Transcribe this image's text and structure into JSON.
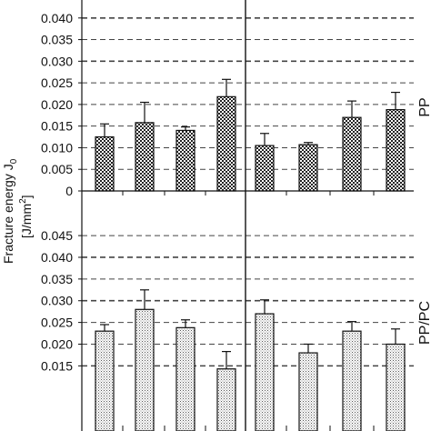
{
  "chart_data": [
    {
      "type": "bar",
      "panel": "top",
      "ylim": [
        0,
        0.045
      ],
      "ytick_values": [
        0,
        0.005,
        0.01,
        0.015,
        0.02,
        0.025,
        0.03,
        0.035,
        0.04
      ],
      "ytick_labels": [
        "0",
        "0.005",
        "0.010",
        "0.015",
        "0.020",
        "0.025",
        "0.030",
        "0.035",
        "0.040"
      ],
      "series": [
        {
          "values": [
            0.0125,
            0.0158,
            0.014,
            0.0218,
            0.0105,
            0.0107,
            0.017,
            0.0188
          ],
          "errors": [
            0.003,
            0.0047,
            0.0008,
            0.004,
            0.0028,
            0.0005,
            0.0038,
            0.004
          ]
        }
      ],
      "side_label": "PP",
      "bar_pattern": "crosshatch"
    },
    {
      "type": "bar",
      "panel": "bottom",
      "ylim": [
        0,
        0.049
      ],
      "ytick_values": [
        0.015,
        0.02,
        0.025,
        0.03,
        0.035,
        0.04,
        0.045
      ],
      "ytick_labels": [
        "0.015",
        "0.020",
        "0.025",
        "0.030",
        "0.035",
        "0.040",
        "0.045"
      ],
      "series": [
        {
          "values": [
            0.023,
            0.028,
            0.0238,
            0.0143,
            0.027,
            0.018,
            0.023,
            0.02
          ],
          "errors": [
            0.0015,
            0.0045,
            0.0018,
            0.004,
            0.0032,
            0.002,
            0.0022,
            0.0035
          ]
        }
      ],
      "side_label": "PP/PC",
      "bar_pattern": "dots"
    }
  ],
  "shared": {
    "ylabel_line1": "Fracture energy J",
    "ylabel_subscript": "0",
    "ylabel_line2": "[J/mm",
    "ylabel_line2_sup": "2",
    "ylabel_line2_end": "]"
  }
}
